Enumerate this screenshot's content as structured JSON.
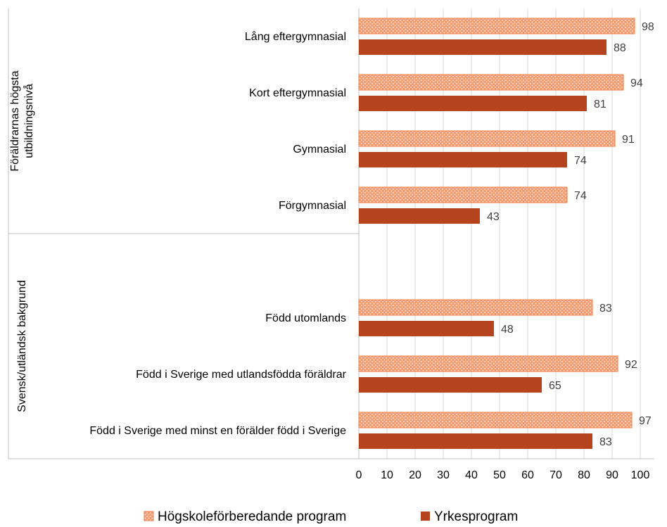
{
  "chart_data": {
    "type": "grouped-barh",
    "categories": [
      "Lång eftergymnasial",
      "Kort eftergymnasial",
      "Gymnasial",
      "Förgymnasial",
      null,
      "Född utomlands",
      "Född i Sverige med utlandsfödda föräldrar",
      "Född i Sverige med minst en förälder född i Sverige"
    ],
    "groups": [
      {
        "label_lines": [
          "Föräldrarnas högsta",
          "utbildningsnivå"
        ],
        "first": 0,
        "last": 3
      },
      {
        "label_lines": [
          "Svensk/utländsk bakgrund"
        ],
        "first": 4,
        "last": 7
      }
    ],
    "series": [
      {
        "name": "Högskoleförberedande program",
        "color": "#f59a6e",
        "pattern": "dots",
        "values": [
          98,
          94,
          91,
          74,
          null,
          83,
          92,
          97
        ]
      },
      {
        "name": "Yrkesprogram",
        "color": "#b5441e",
        "values": [
          88,
          81,
          74,
          43,
          null,
          48,
          65,
          83
        ]
      }
    ],
    "xlim": [
      0,
      100
    ],
    "xticks": [
      0,
      10,
      20,
      30,
      40,
      50,
      60,
      70,
      80,
      90,
      100
    ],
    "grid": true,
    "legend": "bottom"
  }
}
